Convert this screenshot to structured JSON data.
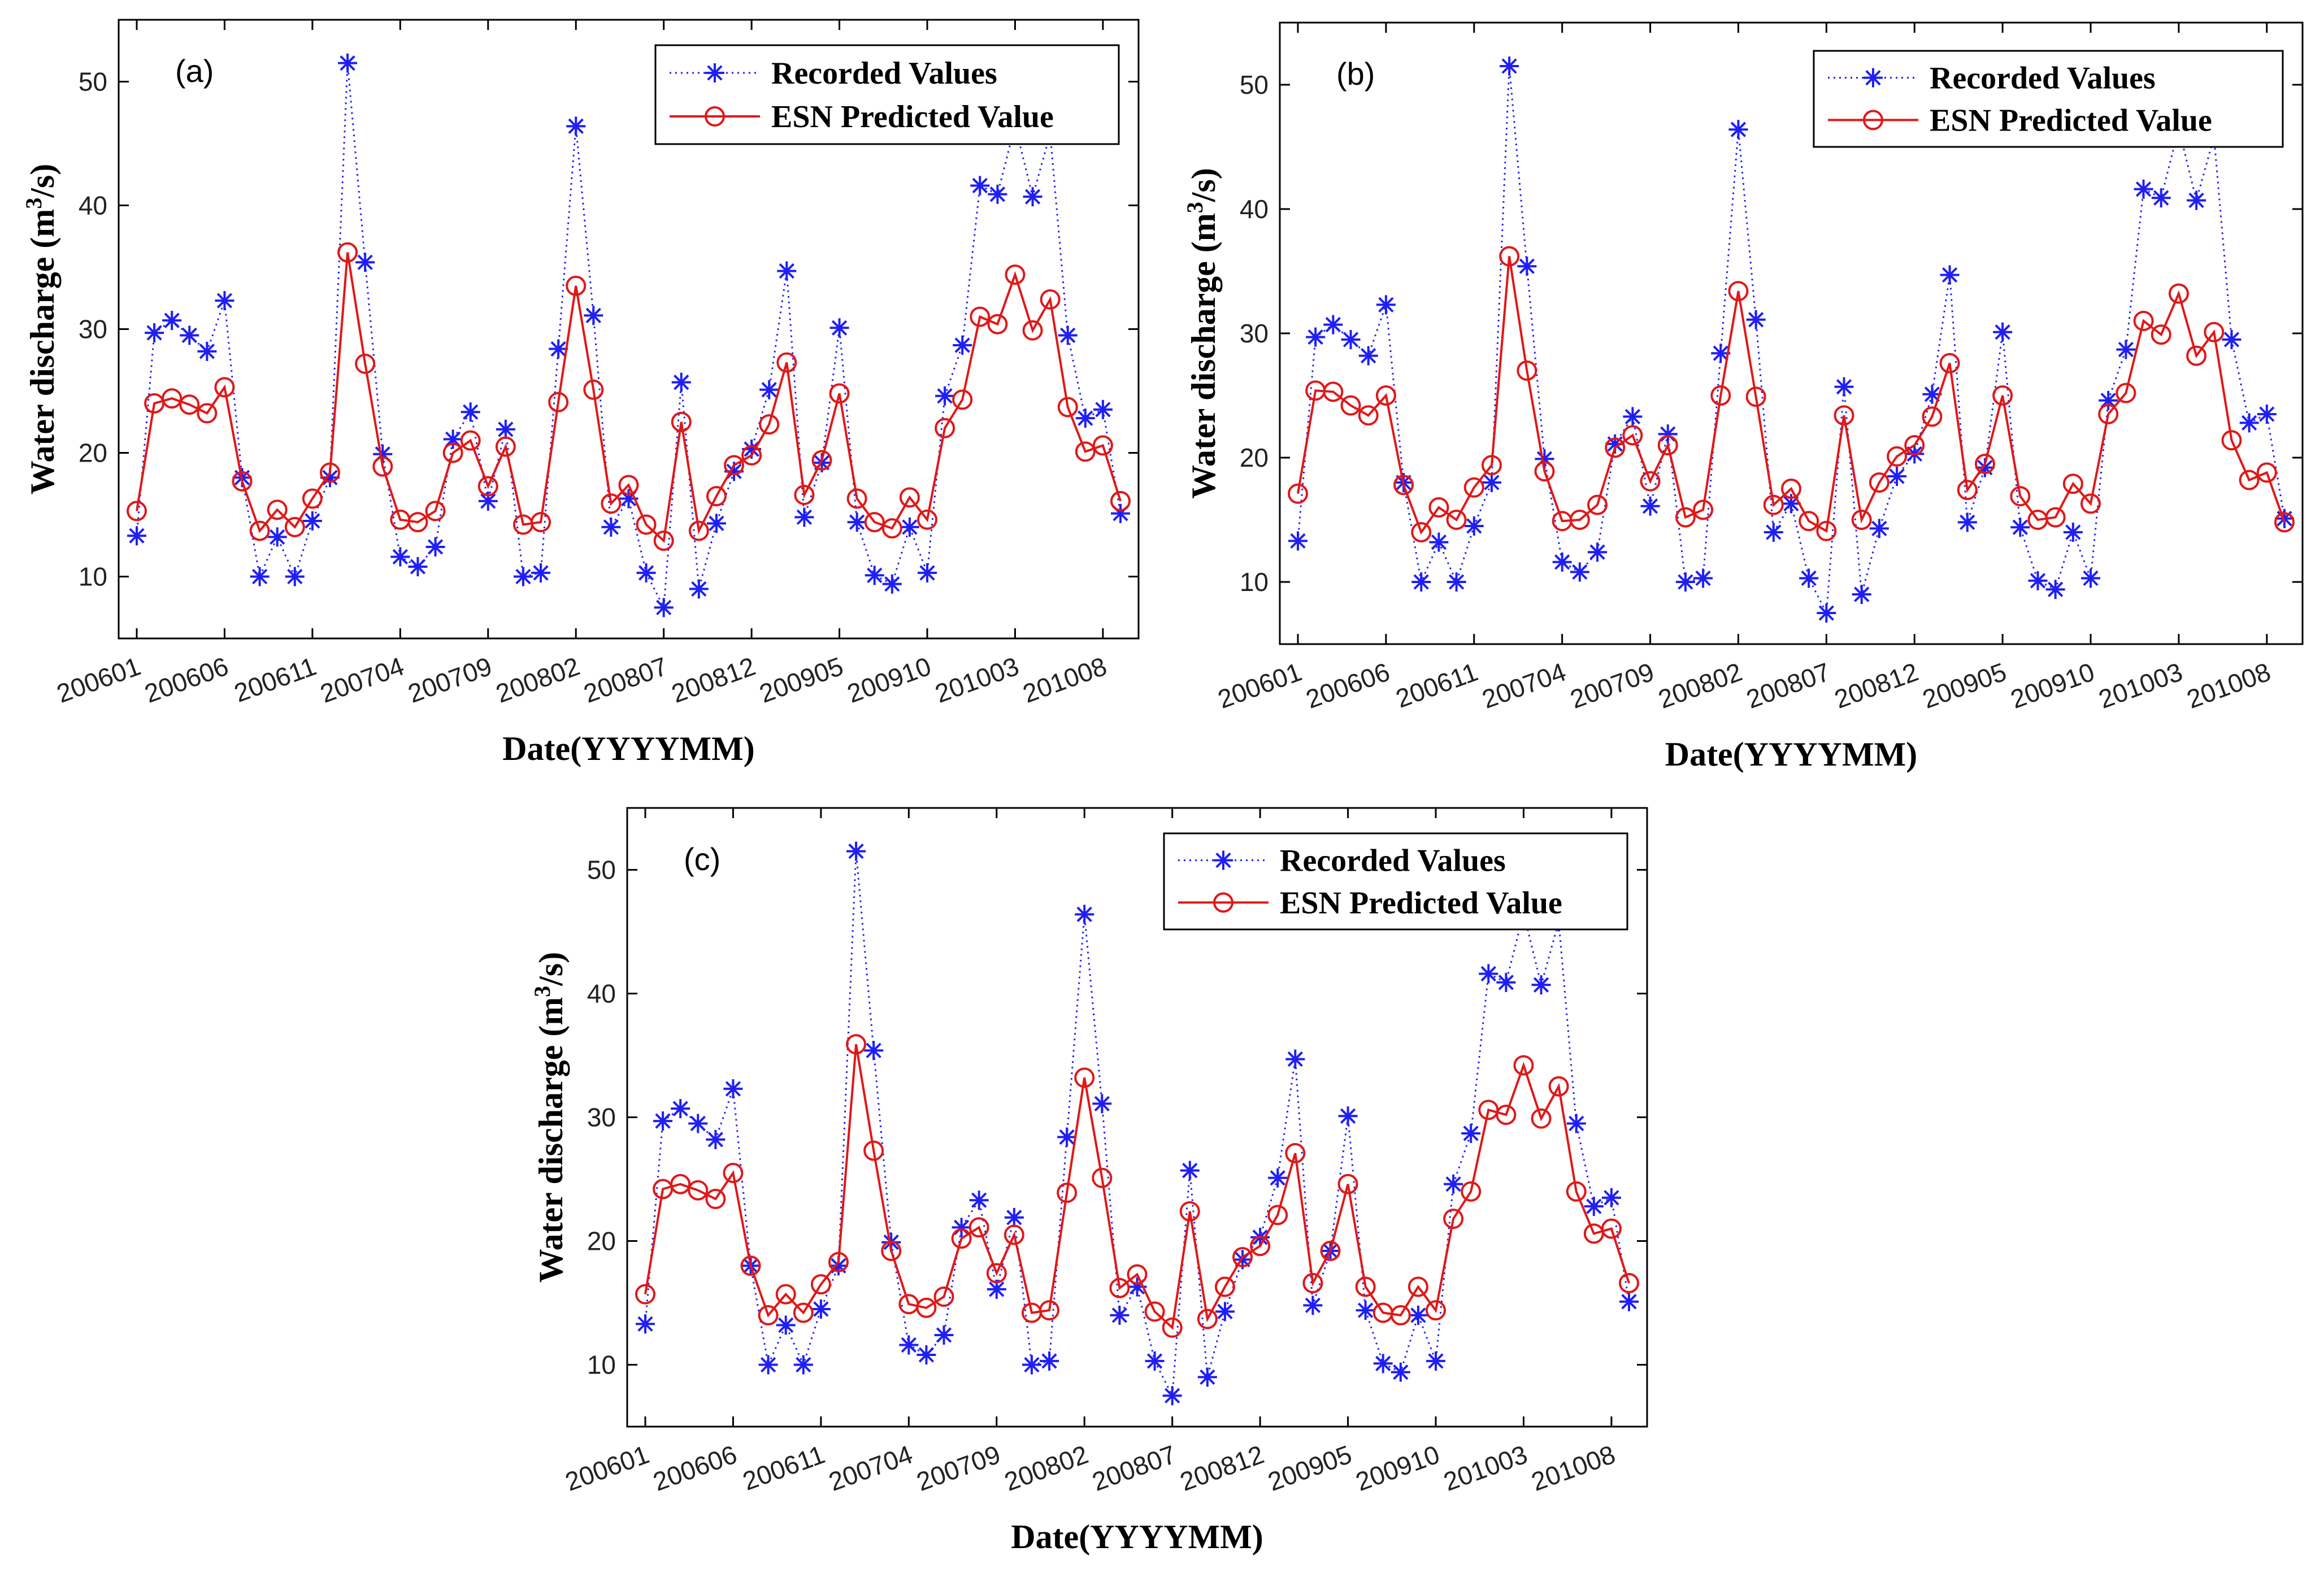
{
  "colors": {
    "recorded": "#1f1ff5",
    "predicted": "#e01818",
    "axis": "#000000",
    "background": "#ffffff"
  },
  "chart_data": [
    {
      "panel_label": "(a)",
      "type": "line",
      "xlabel": "Date(YYYYMM)",
      "ylabel_main": "Water discharge (m",
      "ylabel_sup": "3",
      "ylabel_tail": "/s)",
      "ylim": [
        5,
        55
      ],
      "yticks": [
        10,
        20,
        30,
        40,
        50
      ],
      "xtick_labels": [
        "200601",
        "200606",
        "200611",
        "200704",
        "200709",
        "200802",
        "200807",
        "200812",
        "200905",
        "200910",
        "201003",
        "201008"
      ],
      "legend_position": "top-right",
      "series": [
        {
          "name": "Recorded Values",
          "style": "dotted-asterisk",
          "values": [
            13.3,
            29.7,
            30.7,
            29.5,
            28.2,
            32.3,
            18.0,
            10.0,
            13.2,
            10.0,
            14.5,
            18.0,
            51.5,
            35.4,
            19.9,
            11.6,
            10.8,
            12.4,
            21.1,
            23.3,
            16.1,
            21.9,
            10.0,
            10.3,
            28.4,
            46.4,
            31.1,
            14.0,
            16.3,
            10.3,
            7.5,
            25.7,
            9.0,
            14.3,
            18.5,
            20.3,
            25.1,
            34.7,
            14.8,
            19.2,
            30.1,
            14.4,
            10.1,
            9.4,
            14.0,
            10.3,
            24.6,
            28.7,
            41.6,
            40.9,
            46.5,
            40.7,
            45.8,
            29.5,
            22.8,
            23.5,
            15.1
          ]
        },
        {
          "name": "ESN Predicted Value",
          "style": "solid-circle",
          "values": [
            15.3,
            24.0,
            24.4,
            23.9,
            23.2,
            25.3,
            17.7,
            13.7,
            15.4,
            14.0,
            16.3,
            18.4,
            36.2,
            27.2,
            18.9,
            14.6,
            14.4,
            15.3,
            20.0,
            21.0,
            17.3,
            20.5,
            14.2,
            14.4,
            24.1,
            33.5,
            25.1,
            15.9,
            17.4,
            14.2,
            12.9,
            22.5,
            13.7,
            16.5,
            19.0,
            19.8,
            22.3,
            27.3,
            16.6,
            19.4,
            24.8,
            16.3,
            14.4,
            13.9,
            16.4,
            14.6,
            22.0,
            24.3,
            31.0,
            30.4,
            34.4,
            29.9,
            32.4,
            23.7,
            20.1,
            20.6,
            16.1
          ]
        }
      ]
    },
    {
      "panel_label": "(b)",
      "type": "line",
      "xlabel": "Date(YYYYMM)",
      "ylabel_main": "Water discharge (m",
      "ylabel_sup": "3",
      "ylabel_tail": "/s)",
      "ylim": [
        5,
        55
      ],
      "yticks": [
        10,
        20,
        30,
        40,
        50
      ],
      "xtick_labels": [
        "200601",
        "200606",
        "200611",
        "200704",
        "200709",
        "200802",
        "200807",
        "200812",
        "200905",
        "200910",
        "201003",
        "201008"
      ],
      "legend_position": "top-right",
      "series": [
        {
          "name": "Recorded Values",
          "style": "dotted-asterisk",
          "values": [
            13.3,
            29.7,
            30.7,
            29.5,
            28.2,
            32.3,
            18.0,
            10.0,
            13.2,
            10.0,
            14.5,
            18.0,
            51.5,
            35.4,
            19.9,
            11.6,
            10.8,
            12.4,
            21.1,
            23.3,
            16.1,
            21.9,
            10.0,
            10.3,
            28.4,
            46.4,
            31.1,
            14.0,
            16.3,
            10.3,
            7.5,
            25.7,
            9.0,
            14.3,
            18.5,
            20.3,
            25.1,
            34.7,
            14.8,
            19.2,
            30.1,
            14.4,
            10.1,
            9.4,
            14.0,
            10.3,
            24.6,
            28.7,
            41.6,
            40.9,
            46.5,
            40.7,
            45.8,
            29.5,
            22.8,
            23.5,
            15.1
          ]
        },
        {
          "name": "ESN Predicted Value",
          "style": "solid-circle",
          "values": [
            17.1,
            25.4,
            25.3,
            24.2,
            23.4,
            25.0,
            17.8,
            14.0,
            16.0,
            15.0,
            17.6,
            19.4,
            36.2,
            27.0,
            18.9,
            14.9,
            15.0,
            16.2,
            20.8,
            21.8,
            18.1,
            21.0,
            15.2,
            15.8,
            25.0,
            33.4,
            24.9,
            16.2,
            17.5,
            14.9,
            14.1,
            23.4,
            15.0,
            18.0,
            20.1,
            21.0,
            23.3,
            27.6,
            17.4,
            19.5,
            25.0,
            16.9,
            15.0,
            15.2,
            17.9,
            16.3,
            23.5,
            25.2,
            31.0,
            29.9,
            33.2,
            28.2,
            30.1,
            21.4,
            18.2,
            18.8,
            14.8
          ]
        }
      ]
    },
    {
      "panel_label": "(c)",
      "type": "line",
      "xlabel": "Date(YYYYMM)",
      "ylabel_main": "Water discharge (m",
      "ylabel_sup": "3",
      "ylabel_tail": "/s)",
      "ylim": [
        5,
        55
      ],
      "yticks": [
        10,
        20,
        30,
        40,
        50
      ],
      "xtick_labels": [
        "200601",
        "200606",
        "200611",
        "200704",
        "200709",
        "200802",
        "200807",
        "200812",
        "200905",
        "200910",
        "201003",
        "201008"
      ],
      "legend_position": "top-right",
      "series": [
        {
          "name": "Recorded Values",
          "style": "dotted-asterisk",
          "values": [
            13.3,
            29.7,
            30.7,
            29.5,
            28.2,
            32.3,
            18.0,
            10.0,
            13.2,
            10.0,
            14.5,
            18.0,
            51.5,
            35.4,
            19.9,
            11.6,
            10.8,
            12.4,
            21.1,
            23.3,
            16.1,
            21.9,
            10.0,
            10.3,
            28.4,
            46.4,
            31.1,
            14.0,
            16.3,
            10.3,
            7.5,
            25.7,
            9.0,
            14.3,
            18.5,
            20.3,
            25.1,
            34.7,
            14.8,
            19.2,
            30.1,
            14.4,
            10.1,
            9.4,
            14.0,
            10.3,
            24.6,
            28.7,
            41.6,
            40.9,
            46.5,
            40.7,
            45.8,
            29.5,
            22.8,
            23.5,
            15.1
          ]
        },
        {
          "name": "ESN Predicted Value",
          "style": "solid-circle",
          "values": [
            15.7,
            24.2,
            24.6,
            24.1,
            23.4,
            25.5,
            18.0,
            14.0,
            15.7,
            14.2,
            16.5,
            18.3,
            35.9,
            27.3,
            19.2,
            14.9,
            14.6,
            15.5,
            20.2,
            21.1,
            17.4,
            20.5,
            14.2,
            14.4,
            23.9,
            33.2,
            25.1,
            16.2,
            17.3,
            14.3,
            13.0,
            22.4,
            13.7,
            16.3,
            18.7,
            19.6,
            22.1,
            27.1,
            16.6,
            19.2,
            24.6,
            16.3,
            14.2,
            14.0,
            16.3,
            14.4,
            21.8,
            24.0,
            30.6,
            30.2,
            34.2,
            29.9,
            32.5,
            24.0,
            20.6,
            21.0,
            16.6
          ]
        }
      ]
    }
  ]
}
